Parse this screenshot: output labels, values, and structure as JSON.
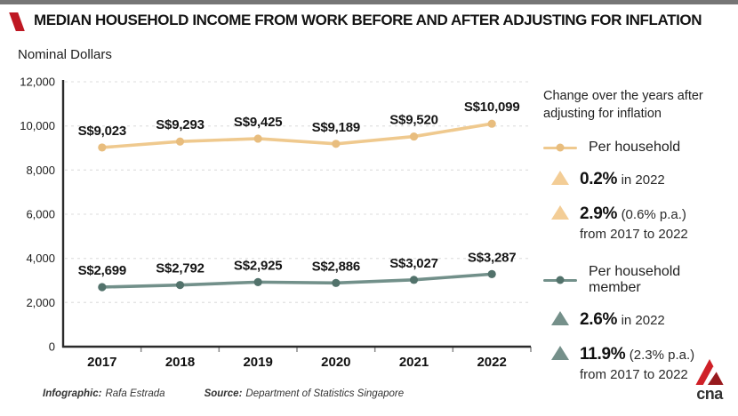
{
  "header": {
    "title": "MEDIAN HOUSEHOLD INCOME FROM WORK BEFORE AND AFTER ADJUSTING FOR INFLATION"
  },
  "chart_data": {
    "type": "line",
    "title": "Median household income from work before and after adjusting for inflation",
    "ylabel": "Nominal Dollars",
    "categories": [
      "2017",
      "2018",
      "2019",
      "2020",
      "2021",
      "2022"
    ],
    "ylim": [
      0,
      12000
    ],
    "ytick_step": 2000,
    "grid": "horizontal-dashed",
    "legend_position": "right",
    "series": [
      {
        "name": "Per household",
        "color": "#EFC98E",
        "dot_color": "#E8BD7E",
        "values": [
          9023,
          9293,
          9425,
          9189,
          9520,
          10099
        ],
        "labels": [
          "S$9,023",
          "S$9,293",
          "S$9,425",
          "S$9,189",
          "S$9,520",
          "S$10,099"
        ]
      },
      {
        "name": "Per household member",
        "color": "#72908A",
        "dot_color": "#52726B",
        "values": [
          2699,
          2792,
          2925,
          2886,
          3027,
          3287
        ],
        "labels": [
          "S$2,699",
          "S$2,792",
          "S$2,925",
          "S$2,886",
          "S$3,027",
          "S$3,287"
        ]
      }
    ]
  },
  "legend": {
    "title": "Change over the years after adjusting for inflation",
    "items": [
      {
        "label": "Per household"
      },
      {
        "pct": "0.2%",
        "suffix": "in 2022"
      },
      {
        "pct": "2.9%",
        "suffix": "(0.6% p.a.)",
        "line2": "from 2017 to 2022"
      },
      {
        "label": "Per household member"
      },
      {
        "pct": "2.6%",
        "suffix": "in 2022"
      },
      {
        "pct": "11.9%",
        "suffix": "(2.3% p.a.)",
        "line2": "from 2017 to 2022"
      }
    ]
  },
  "footer": {
    "infographic_label": "Infographic:",
    "infographic_value": "Rafa Estrada",
    "source_label": "Source:",
    "source_value": "Department of Statistics Singapore"
  },
  "logo": {
    "text": "cna"
  },
  "colors": {
    "accent_red": "#BE1823",
    "top_bar": "#767676",
    "household_line": "#EFC98E",
    "household_member_line": "#72908A",
    "grid_line": "#E4E4E4",
    "axis_line": "#2B2B2B"
  }
}
